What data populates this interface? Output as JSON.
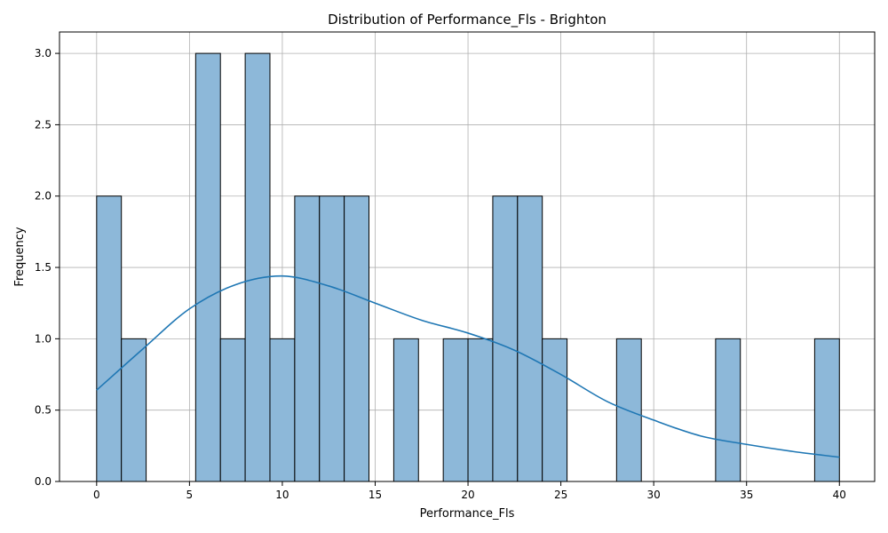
{
  "chart_data": {
    "type": "bar",
    "title": "Distribution of Performance_Fls - Brighton",
    "xlabel": "Performance_Fls",
    "ylabel": "Frequency",
    "xlim": [
      -2,
      41.9
    ],
    "ylim": [
      0,
      3.15
    ],
    "grid": true,
    "x_ticks": [
      0,
      5,
      10,
      15,
      20,
      25,
      30,
      35,
      40
    ],
    "y_ticks": [
      0.0,
      0.5,
      1.0,
      1.5,
      2.0,
      2.5,
      3.0
    ],
    "bin_width": 1.333,
    "bins": [
      {
        "start": 0.0,
        "count": 2
      },
      {
        "start": 1.333,
        "count": 1
      },
      {
        "start": 2.667,
        "count": 0
      },
      {
        "start": 4.0,
        "count": 0
      },
      {
        "start": 5.333,
        "count": 3
      },
      {
        "start": 6.667,
        "count": 1
      },
      {
        "start": 8.0,
        "count": 3
      },
      {
        "start": 9.333,
        "count": 1
      },
      {
        "start": 10.667,
        "count": 2
      },
      {
        "start": 12.0,
        "count": 2
      },
      {
        "start": 13.333,
        "count": 2
      },
      {
        "start": 14.667,
        "count": 0
      },
      {
        "start": 16.0,
        "count": 1
      },
      {
        "start": 17.333,
        "count": 0
      },
      {
        "start": 18.667,
        "count": 1
      },
      {
        "start": 20.0,
        "count": 1
      },
      {
        "start": 21.333,
        "count": 2
      },
      {
        "start": 22.667,
        "count": 2
      },
      {
        "start": 24.0,
        "count": 1
      },
      {
        "start": 25.333,
        "count": 0
      },
      {
        "start": 26.667,
        "count": 0
      },
      {
        "start": 28.0,
        "count": 1
      },
      {
        "start": 29.333,
        "count": 0
      },
      {
        "start": 30.667,
        "count": 0
      },
      {
        "start": 32.0,
        "count": 0
      },
      {
        "start": 33.333,
        "count": 1
      },
      {
        "start": 34.667,
        "count": 0
      },
      {
        "start": 36.0,
        "count": 0
      },
      {
        "start": 37.333,
        "count": 0
      },
      {
        "start": 38.667,
        "count": 1
      }
    ],
    "kde": {
      "x": [
        0,
        2.5,
        5,
        7.5,
        10,
        12.5,
        15,
        17.5,
        20,
        22.5,
        25,
        27.5,
        30,
        32.5,
        35,
        37.5,
        40
      ],
      "y": [
        0.64,
        0.93,
        1.21,
        1.38,
        1.44,
        1.37,
        1.25,
        1.13,
        1.04,
        0.92,
        0.75,
        0.56,
        0.43,
        0.32,
        0.26,
        0.21,
        0.17
      ]
    },
    "colors": {
      "bar_fill": "#8db8d9",
      "bar_edge": "#000000",
      "kde_line": "#1f77b4",
      "grid": "#b0b0b0"
    }
  }
}
